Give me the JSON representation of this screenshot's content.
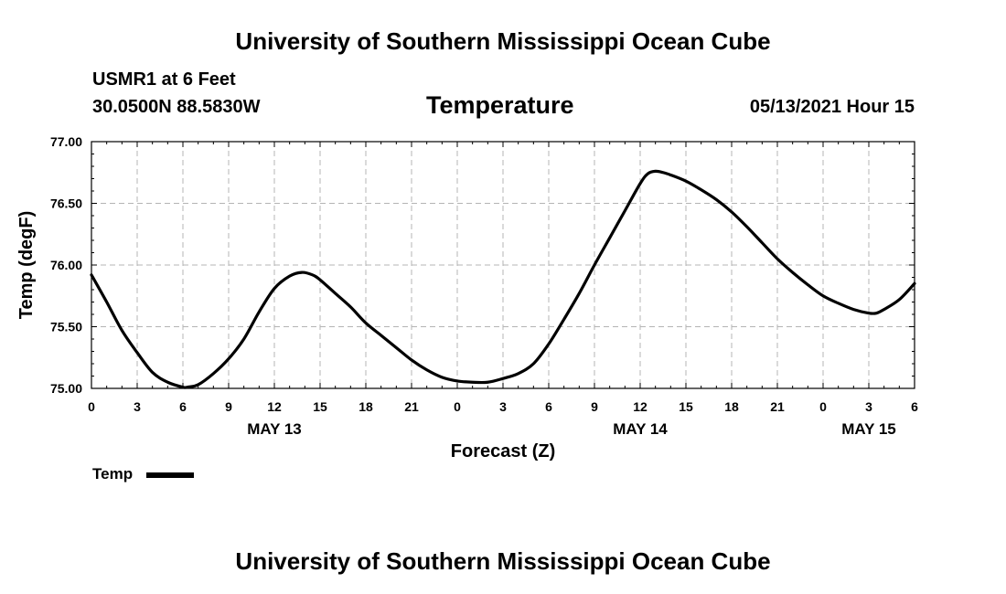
{
  "header": {
    "top_title": "University of Southern Mississippi Ocean Cube",
    "station": "USMR1 at 6 Feet",
    "coords": "30.0500N  88.5830W",
    "chart_title": "Temperature",
    "datetime": "05/13/2021 Hour 15"
  },
  "footer": {
    "bottom_title": "University of Southern Mississippi Ocean Cube"
  },
  "legend": {
    "label": "Temp"
  },
  "colors": {
    "line": "#000000",
    "grid": "#b4b4b4"
  },
  "chart_data": {
    "type": "line",
    "title": "Temperature",
    "xlabel": "Forecast (Z)",
    "ylabel": "Temp (degF)",
    "x_unit": "hours since 2021-05-13 00Z",
    "xlim": [
      0,
      54
    ],
    "ylim": [
      75.0,
      77.0
    ],
    "yticks": [
      "75.00",
      "75.50",
      "76.00",
      "76.50",
      "77.00"
    ],
    "ytick_values": [
      75.0,
      75.5,
      76.0,
      76.5,
      77.0
    ],
    "xtick_values": [
      0,
      3,
      6,
      9,
      12,
      15,
      18,
      21,
      24,
      27,
      30,
      33,
      36,
      39,
      42,
      45,
      48,
      51,
      54
    ],
    "xtick_labels": [
      "0",
      "3",
      "6",
      "9",
      "12",
      "15",
      "18",
      "21",
      "0",
      "3",
      "6",
      "9",
      "12",
      "15",
      "18",
      "21",
      "0",
      "3",
      "6"
    ],
    "date_labels": [
      {
        "x": 12,
        "label": "MAY 13"
      },
      {
        "x": 36,
        "label": "MAY 14"
      },
      {
        "x": 51,
        "label": "MAY 15"
      }
    ],
    "grid": true,
    "series": [
      {
        "name": "Temp",
        "x": [
          0,
          1,
          2,
          3,
          4,
          5,
          6,
          6.3,
          7,
          8,
          9,
          10,
          11,
          12,
          13,
          13.8,
          14.5,
          15,
          16,
          17,
          18,
          19,
          20,
          21,
          22,
          23,
          24,
          25,
          26,
          27,
          28,
          29,
          30,
          31,
          32,
          33,
          34,
          35,
          36,
          36.5,
          37,
          37.5,
          38,
          39,
          40,
          41,
          42,
          43,
          44,
          45,
          46,
          47,
          48,
          49,
          50,
          51,
          51.5,
          52,
          53,
          54
        ],
        "values": [
          75.92,
          75.7,
          75.47,
          75.29,
          75.13,
          75.05,
          75.01,
          75.01,
          75.03,
          75.12,
          75.24,
          75.4,
          75.62,
          75.81,
          75.91,
          75.94,
          75.92,
          75.88,
          75.77,
          75.66,
          75.53,
          75.43,
          75.33,
          75.23,
          75.15,
          75.09,
          75.06,
          75.05,
          75.05,
          75.08,
          75.12,
          75.2,
          75.36,
          75.56,
          75.77,
          76.0,
          76.22,
          76.44,
          76.66,
          76.74,
          76.76,
          76.75,
          76.73,
          76.68,
          76.61,
          76.53,
          76.43,
          76.31,
          76.18,
          76.05,
          75.94,
          75.84,
          75.75,
          75.69,
          75.64,
          75.61,
          75.61,
          75.64,
          75.72,
          75.85
        ]
      }
    ]
  }
}
